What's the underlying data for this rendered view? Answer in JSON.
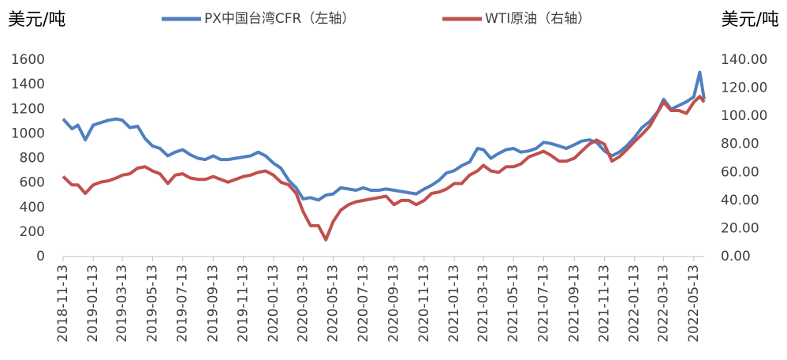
{
  "chart_data": {
    "type": "line",
    "ylabel": "美元/吨",
    "y2label": "美元/吨",
    "x": [
      "2018-11-13",
      "2018-12-01",
      "2018-12-13",
      "2018-12-28",
      "2019-01-13",
      "2019-01-28",
      "2019-02-13",
      "2019-03-01",
      "2019-03-13",
      "2019-03-28",
      "2019-04-13",
      "2019-04-28",
      "2019-05-13",
      "2019-05-28",
      "2019-06-13",
      "2019-06-28",
      "2019-07-13",
      "2019-07-28",
      "2019-08-13",
      "2019-08-28",
      "2019-09-13",
      "2019-09-28",
      "2019-10-13",
      "2019-10-28",
      "2019-11-13",
      "2019-11-28",
      "2019-12-13",
      "2019-12-28",
      "2020-01-13",
      "2020-01-28",
      "2020-02-13",
      "2020-02-28",
      "2020-03-13",
      "2020-03-28",
      "2020-04-13",
      "2020-04-28",
      "2020-05-13",
      "2020-05-28",
      "2020-06-13",
      "2020-06-28",
      "2020-07-13",
      "2020-07-28",
      "2020-08-13",
      "2020-08-28",
      "2020-09-13",
      "2020-09-28",
      "2020-10-13",
      "2020-10-28",
      "2020-11-13",
      "2020-11-28",
      "2020-12-13",
      "2020-12-28",
      "2021-01-13",
      "2021-01-28",
      "2021-02-13",
      "2021-03-01",
      "2021-03-13",
      "2021-03-28",
      "2021-04-13",
      "2021-04-28",
      "2021-05-13",
      "2021-05-28",
      "2021-06-13",
      "2021-06-28",
      "2021-07-13",
      "2021-07-28",
      "2021-08-13",
      "2021-08-28",
      "2021-09-13",
      "2021-09-28",
      "2021-10-13",
      "2021-10-28",
      "2021-11-13",
      "2021-11-28",
      "2021-12-13",
      "2021-12-28",
      "2022-01-13",
      "2022-01-28",
      "2022-02-13",
      "2022-03-01",
      "2022-03-13",
      "2022-03-28",
      "2022-04-13",
      "2022-04-28",
      "2022-05-13",
      "2022-05-25",
      "2022-06-03"
    ],
    "series": [
      {
        "name": "PX中国台湾CFR（左轴）",
        "color": "#4f7fc0",
        "values": [
          1120,
          1040,
          1070,
          950,
          1070,
          1090,
          1110,
          1120,
          1110,
          1050,
          1060,
          960,
          900,
          880,
          820,
          850,
          870,
          830,
          800,
          790,
          820,
          790,
          790,
          800,
          810,
          820,
          850,
          820,
          760,
          720,
          620,
          560,
          470,
          480,
          460,
          500,
          510,
          560,
          550,
          540,
          560,
          540,
          540,
          550,
          540,
          530,
          520,
          510,
          550,
          580,
          620,
          680,
          700,
          740,
          770,
          880,
          870,
          800,
          840,
          870,
          880,
          850,
          860,
          880,
          930,
          920,
          900,
          880,
          910,
          940,
          950,
          930,
          860,
          820,
          850,
          900,
          970,
          1050,
          1100,
          1180,
          1280,
          1200,
          1230,
          1260,
          1300,
          1500,
          1280
        ]
      },
      {
        "name": "WTI原油（右轴）",
        "color": "#c0504d",
        "axis": "y2",
        "values": [
          57,
          51,
          51,
          45,
          51,
          53,
          54,
          56,
          58,
          59,
          63,
          64,
          61,
          59,
          52,
          58,
          59,
          56,
          55,
          55,
          57,
          55,
          53,
          55,
          57,
          58,
          60,
          61,
          58,
          53,
          51,
          45,
          32,
          22,
          22,
          12,
          25,
          33,
          37,
          39,
          40,
          41,
          42,
          43,
          37,
          40,
          40,
          37,
          40,
          45,
          46,
          48,
          52,
          52,
          58,
          61,
          65,
          61,
          60,
          64,
          64,
          66,
          71,
          73,
          75,
          72,
          68,
          68,
          70,
          75,
          80,
          83,
          80,
          68,
          71,
          76,
          82,
          87,
          93,
          103,
          110,
          104,
          104,
          102,
          110,
          114,
          110
        ]
      }
    ],
    "xlim": [
      "2018-11-13",
      "2022-06-03"
    ],
    "xticks": [
      "2018-11-13",
      "2019-01-13",
      "2019-03-13",
      "2019-05-13",
      "2019-07-13",
      "2019-09-13",
      "2019-11-13",
      "2020-01-13",
      "2020-03-13",
      "2020-05-13",
      "2020-07-13",
      "2020-09-13",
      "2020-11-13",
      "2021-01-13",
      "2021-03-13",
      "2021-05-13",
      "2021-07-13",
      "2021-09-13",
      "2021-11-13",
      "2022-01-13",
      "2022-03-13",
      "2022-05-13"
    ],
    "ylim": [
      0,
      1600
    ],
    "yticks": [
      0,
      200,
      400,
      600,
      800,
      1000,
      1200,
      1400,
      1600
    ],
    "y2lim": [
      0,
      140
    ],
    "y2ticks": [
      {
        "value": 0,
        "label": "0.00"
      },
      {
        "value": 20,
        "label": "20.00"
      },
      {
        "value": 40,
        "label": "40.00"
      },
      {
        "value": 60,
        "label": "60.00"
      },
      {
        "value": 80,
        "label": "80.00"
      },
      {
        "value": 100,
        "label": "100.00"
      },
      {
        "value": 120,
        "label": "120.00"
      },
      {
        "value": 140,
        "label": "140.00"
      }
    ],
    "legend": "top",
    "grid": false
  }
}
